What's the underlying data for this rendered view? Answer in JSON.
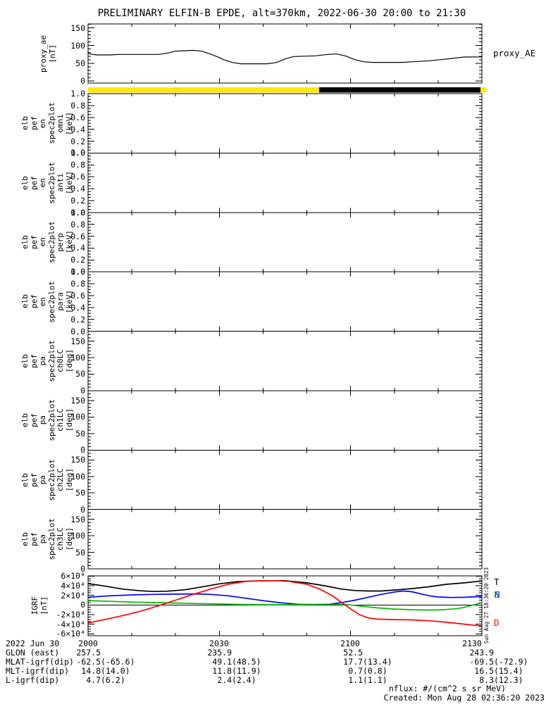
{
  "title": "PRELIMINARY ELFIN-B EPDE, alt=370km, 2022-06-30 20:00 to 21:30",
  "footer": {
    "nflux_units": "nflux: #/(cm^2 s sr MeV)",
    "created": "Created: Mon Aug 28 02:36:20 2023"
  },
  "colors": {
    "axis": "#000000",
    "bar_yellow": "#ffe808",
    "bar_black": "#000000",
    "igrf_T": "#000000",
    "igrf_N": "#0000ff",
    "igrf_E": "#00bb00",
    "igrf_D": "#ff0000"
  },
  "chart_data": {
    "type": "line",
    "description": "Multi-panel time series, 2022-06-30 20:00 to 21:30 UT",
    "x_axis": {
      "date_label": "2022 Jun 30",
      "range_minutes": [
        0,
        90
      ],
      "minor_dt": 10,
      "ticks": [
        {
          "t": 0,
          "label": "2000"
        },
        {
          "t": 30,
          "label": "2030"
        },
        {
          "t": 60,
          "label": "2100"
        },
        {
          "t": 90,
          "label": "2130"
        }
      ]
    },
    "orbit_bar": {
      "segments": [
        {
          "color": "#ffe808",
          "t0": 0,
          "t1": 52.8
        },
        {
          "color": "#000000",
          "t0": 52.8,
          "t1": 89.7
        },
        {
          "color": "#ffe808",
          "t0": 89.7,
          "t1": 91
        }
      ]
    },
    "panels": [
      {
        "id": "proxy_ae",
        "kind": "line",
        "ylabel_lines": [
          "proxy_ae",
          "[nT]"
        ],
        "right_label": "proxy_AE",
        "yrange": [
          -6,
          161
        ],
        "minor_dv": 10,
        "yticks": [
          {
            "v": 0,
            "label": "0"
          },
          {
            "v": 50,
            "label": "50"
          },
          {
            "v": 100,
            "label": "100"
          },
          {
            "v": 150,
            "label": "150"
          }
        ],
        "series": [
          {
            "name": "proxy_AE",
            "color": "#000000",
            "width": 1.2,
            "t": [
              0,
              1,
              2,
              5,
              7,
              9,
              16,
              18,
              20,
              24,
              26,
              28,
              30,
              31,
              33,
              35,
              41,
              43,
              45,
              47,
              52,
              54,
              56,
              57,
              59,
              61,
              63,
              65,
              72,
              74,
              78,
              82,
              84,
              86,
              90
            ],
            "v": [
              78,
              75,
              73.5,
              73.5,
              75,
              75,
              75,
              78,
              84,
              86.5,
              84,
              76,
              66,
              60,
              52,
              48.5,
              48.5,
              52,
              62,
              69,
              71,
              74,
              76,
              76,
              70,
              60,
              54,
              52.5,
              52.5,
              54,
              57,
              62,
              65,
              67.5,
              68
            ]
          }
        ]
      },
      {
        "id": "en_omni",
        "kind": "spectrogram-empty",
        "ylabel_lines": [
          "elb",
          "pef",
          "en",
          "spec2plot",
          "omni",
          "[keV]"
        ],
        "yrange": [
          0,
          1
        ],
        "minor_dv": 0.05,
        "yticks": [
          {
            "v": 0,
            "label": "0.0"
          },
          {
            "v": 0.2,
            "label": "0.2"
          },
          {
            "v": 0.4,
            "label": "0.4"
          },
          {
            "v": 0.6,
            "label": "0.6"
          },
          {
            "v": 0.8,
            "label": "0.8"
          },
          {
            "v": 1,
            "label": "1.0"
          }
        ],
        "series": []
      },
      {
        "id": "en_anti",
        "kind": "spectrogram-empty",
        "ylabel_lines": [
          "elb",
          "pef",
          "en",
          "spec2plot",
          "anti",
          "[keV]"
        ],
        "yrange": [
          0,
          1
        ],
        "minor_dv": 0.05,
        "yticks": [
          {
            "v": 0,
            "label": "0.0"
          },
          {
            "v": 0.2,
            "label": "0.2"
          },
          {
            "v": 0.4,
            "label": "0.4"
          },
          {
            "v": 0.6,
            "label": "0.6"
          },
          {
            "v": 0.8,
            "label": "0.8"
          },
          {
            "v": 1,
            "label": "1.0"
          }
        ],
        "series": []
      },
      {
        "id": "en_perp",
        "kind": "spectrogram-empty",
        "ylabel_lines": [
          "elb",
          "pef",
          "en",
          "spec2plot",
          "perp",
          "[keV]"
        ],
        "yrange": [
          0,
          1
        ],
        "minor_dv": 0.05,
        "yticks": [
          {
            "v": 0,
            "label": "0.0"
          },
          {
            "v": 0.2,
            "label": "0.2"
          },
          {
            "v": 0.4,
            "label": "0.4"
          },
          {
            "v": 0.6,
            "label": "0.6"
          },
          {
            "v": 0.8,
            "label": "0.8"
          },
          {
            "v": 1,
            "label": "1.0"
          }
        ],
        "series": []
      },
      {
        "id": "en_para",
        "kind": "spectrogram-empty",
        "ylabel_lines": [
          "elb",
          "pef",
          "en",
          "spec2plot",
          "para",
          "[keV]"
        ],
        "yrange": [
          0,
          1
        ],
        "minor_dv": 0.05,
        "yticks": [
          {
            "v": 0,
            "label": "0.0"
          },
          {
            "v": 0.2,
            "label": "0.2"
          },
          {
            "v": 0.4,
            "label": "0.4"
          },
          {
            "v": 0.6,
            "label": "0.6"
          },
          {
            "v": 0.8,
            "label": "0.8"
          },
          {
            "v": 1,
            "label": "1.0"
          }
        ],
        "series": []
      },
      {
        "id": "pa_ch0LC",
        "kind": "spectrogram-empty",
        "ylabel_lines": [
          "elb",
          "pef",
          "pa",
          "spec2plot",
          "ch0LC",
          "[deg]"
        ],
        "yrange": [
          0,
          180
        ],
        "minor_dv": 10,
        "yticks": [
          {
            "v": 0,
            "label": "0"
          },
          {
            "v": 50,
            "label": "50"
          },
          {
            "v": 100,
            "label": "100"
          },
          {
            "v": 150,
            "label": "150"
          }
        ],
        "series": []
      },
      {
        "id": "pa_ch1LC",
        "kind": "spectrogram-empty",
        "ylabel_lines": [
          "elb",
          "pef",
          "pa",
          "spec2plot",
          "ch1LC",
          "[deg]"
        ],
        "yrange": [
          0,
          180
        ],
        "minor_dv": 10,
        "yticks": [
          {
            "v": 0,
            "label": "0"
          },
          {
            "v": 50,
            "label": "50"
          },
          {
            "v": 100,
            "label": "100"
          },
          {
            "v": 150,
            "label": "150"
          }
        ],
        "series": []
      },
      {
        "id": "pa_ch2LC",
        "kind": "spectrogram-empty",
        "ylabel_lines": [
          "elb",
          "pef",
          "pa",
          "spec2plot",
          "ch2LC",
          "[deg]"
        ],
        "yrange": [
          0,
          180
        ],
        "minor_dv": 10,
        "yticks": [
          {
            "v": 0,
            "label": "0"
          },
          {
            "v": 50,
            "label": "50"
          },
          {
            "v": 100,
            "label": "100"
          },
          {
            "v": 150,
            "label": "150"
          }
        ],
        "series": []
      },
      {
        "id": "pa_ch3LC",
        "kind": "spectrogram-empty",
        "ylabel_lines": [
          "elb",
          "pef",
          "pa",
          "spec2plot",
          "ch3LC",
          "[deg]"
        ],
        "yrange": [
          0,
          180
        ],
        "minor_dv": 10,
        "yticks": [
          {
            "v": 0,
            "label": "0"
          },
          {
            "v": 50,
            "label": "50"
          },
          {
            "v": 100,
            "label": "100"
          },
          {
            "v": 150,
            "label": "150"
          }
        ],
        "series": []
      },
      {
        "id": "igrf",
        "kind": "line",
        "ylabel_lines": [
          "IGRF",
          "[nT]"
        ],
        "yrange": [
          -64000,
          60500
        ],
        "minor_dv": 5000,
        "zero_line": true,
        "side_note": "Sun Aug 27 18:36:20 2023",
        "yticks": [
          {
            "v": -60000,
            "label": "-6×10⁴"
          },
          {
            "v": -40000,
            "label": "-4×10⁴"
          },
          {
            "v": -20000,
            "label": "-2×10⁴"
          },
          {
            "v": 0,
            "label": "0"
          },
          {
            "v": 20000,
            "label": "2×10⁴"
          },
          {
            "v": 40000,
            "label": "4×10⁴"
          },
          {
            "v": 60000,
            "label": "6×10⁴"
          }
        ],
        "right_labels": [
          {
            "text": "T",
            "color": "#000000",
            "v": 48000,
            "dx": 0
          },
          {
            "text": "N",
            "color": "#0000ff",
            "v": 20500,
            "dx": 1
          },
          {
            "text": "E",
            "color": "#00bb00",
            "v": 20500,
            "dx": 0
          },
          {
            "text": "D",
            "color": "#ff0000",
            "v": -38000,
            "dx": 0
          }
        ],
        "series": [
          {
            "name": "T",
            "color": "#000000",
            "width": 1.7,
            "t": [
              0,
              4,
              8,
              12,
              15,
              18,
              22,
              26,
              30,
              34,
              38,
              42,
              45,
              50,
              54,
              58,
              61,
              64,
              67,
              70,
              74,
              78,
              82,
              86,
              90
            ],
            "v": [
              44500,
              39000,
              33000,
              29500,
              28000,
              28500,
              31500,
              37500,
              44000,
              48500,
              50000,
              50500,
              50500,
              46000,
              40000,
              33000,
              30000,
              29000,
              29000,
              31000,
              34000,
              38000,
              43000,
              46000,
              50000
            ]
          },
          {
            "name": "N",
            "color": "#0000ff",
            "width": 1.7,
            "t": [
              0,
              5,
              10,
              15,
              20,
              25,
              28,
              32,
              36,
              40,
              44,
              48,
              52,
              55,
              58,
              61,
              64,
              67,
              70,
              72,
              74,
              76,
              78,
              80,
              83,
              86,
              90
            ],
            "v": [
              16000,
              19000,
              21000,
              22000,
              22500,
              23000,
              22000,
              19000,
              14000,
              9000,
              4500,
              1500,
              500,
              1500,
              5000,
              10000,
              16000,
              22000,
              27000,
              29000,
              27500,
              23000,
              19000,
              16500,
              15500,
              16000,
              17500
            ]
          },
          {
            "name": "E",
            "color": "#00bb00",
            "width": 1.7,
            "t": [
              0,
              5,
              10,
              15,
              20,
              25,
              30,
              35,
              40,
              45,
              50,
              55,
              58,
              60,
              63,
              66,
              70,
              74,
              78,
              81,
              84,
              86,
              88,
              90
            ],
            "v": [
              9000,
              7500,
              6000,
              5000,
              4000,
              3000,
              2000,
              1000,
              500,
              500,
              1000,
              1500,
              1000,
              0,
              -3000,
              -6000,
              -8500,
              -10000,
              -10500,
              -10000,
              -8000,
              -5000,
              0,
              4500
            ]
          },
          {
            "name": "D",
            "color": "#ff0000",
            "width": 1.7,
            "t": [
              0,
              4,
              8,
              12,
              16,
              20,
              24,
              28,
              32,
              36,
              40,
              43,
              46,
              50,
              53,
              56,
              58,
              60,
              62,
              64,
              66,
              70,
              74,
              78,
              82,
              85,
              88,
              90
            ],
            "v": [
              -37500,
              -30000,
              -22000,
              -13000,
              -2000,
              10000,
              22000,
              33000,
              43000,
              49000,
              50500,
              50500,
              49000,
              43000,
              33000,
              18000,
              5000,
              -8000,
              -20000,
              -27000,
              -29500,
              -30500,
              -31000,
              -33000,
              -36000,
              -39000,
              -42000,
              -43500
            ]
          }
        ]
      }
    ]
  },
  "table": {
    "rows": [
      {
        "label": "2022 Jun 30",
        "cells": [
          {
            "main": "2000",
            "paren": ""
          },
          {
            "main": "2030",
            "paren": ""
          },
          {
            "main": "2100",
            "paren": ""
          },
          {
            "main": "2130",
            "paren": ""
          }
        ]
      },
      {
        "label": "GLON (east)",
        "cells": [
          {
            "main": "257.5",
            "paren": ""
          },
          {
            "main": "235.9",
            "paren": ""
          },
          {
            "main": "52.5",
            "paren": ""
          },
          {
            "main": "243.9",
            "paren": ""
          }
        ]
      },
      {
        "label": "MLAT-igrf(dip)",
        "cells": [
          {
            "main": "-62.5",
            "paren": "(-65.6)"
          },
          {
            "main": "49.1",
            "paren": "(48.5)"
          },
          {
            "main": "17.7",
            "paren": "(13.4)"
          },
          {
            "main": "-69.5",
            "paren": "(-72.9)"
          }
        ]
      },
      {
        "label": "MLT-igrf(dip)",
        "cells": [
          {
            "main": "14.8",
            "paren": "(14.0)"
          },
          {
            "main": "11.8",
            "paren": "(11.9)"
          },
          {
            "main": "0.7",
            "paren": "(0.8)"
          },
          {
            "main": "16.5",
            "paren": "(15.4)"
          }
        ]
      },
      {
        "label": "L-igrf(dip)",
        "cells": [
          {
            "main": "4.7",
            "paren": "(6.2)"
          },
          {
            "main": "2.4",
            "paren": "(2.4)"
          },
          {
            "main": "1.1",
            "paren": "(1.1)"
          },
          {
            "main": "8.3",
            "paren": "(12.3)"
          }
        ]
      }
    ]
  }
}
